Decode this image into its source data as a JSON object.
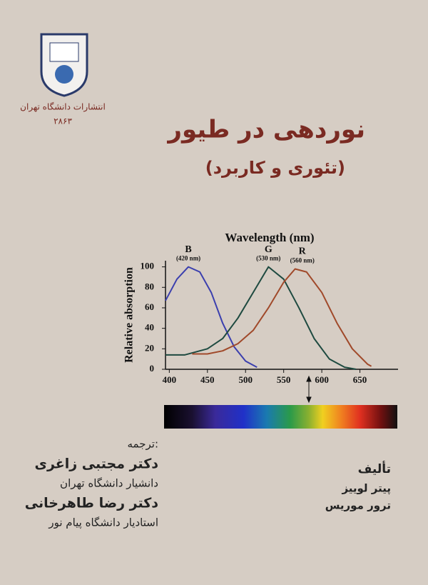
{
  "publisher": {
    "name": "انتشارات دانشگاه تهران",
    "number": "۲۸۶۳"
  },
  "title": "نوردهی در طیور",
  "subtitle": "(تئوری و کاربرد)",
  "chart_data": {
    "type": "line",
    "title": "Wavelength (nm)",
    "ylabel": "Relative absorption",
    "xlim": [
      395,
      700
    ],
    "ylim": [
      0,
      106
    ],
    "xticks": [
      400,
      450,
      500,
      550,
      600,
      650
    ],
    "yticks": [
      0,
      20,
      40,
      60,
      80,
      100
    ],
    "series": [
      {
        "name": "B",
        "peak_label": "(420 nm)",
        "color": "#3b3fae",
        "x": [
          395,
          410,
          425,
          440,
          455,
          470,
          485,
          500,
          515
        ],
        "values": [
          67,
          88,
          100,
          95,
          75,
          45,
          22,
          8,
          2
        ]
      },
      {
        "name": "G",
        "peak_label": "(530 nm)",
        "color": "#1e4a40",
        "x": [
          395,
          420,
          450,
          470,
          490,
          510,
          530,
          550,
          570,
          590,
          610,
          630,
          645
        ],
        "values": [
          14,
          14,
          20,
          30,
          50,
          75,
          100,
          88,
          60,
          30,
          10,
          2,
          0
        ]
      },
      {
        "name": "R",
        "peak_label": "(560 nm)",
        "color": "#a0492a",
        "x": [
          430,
          450,
          470,
          490,
          510,
          530,
          550,
          565,
          580,
          600,
          620,
          640,
          660,
          665
        ],
        "values": [
          15,
          15,
          18,
          25,
          38,
          60,
          85,
          98,
          95,
          75,
          45,
          20,
          5,
          3
        ]
      }
    ]
  },
  "translators": {
    "heading": "ترجمه:",
    "people": [
      {
        "name": "دکتر مجتبی زاغری",
        "role": "دانشیار دانشگاه تهران"
      },
      {
        "name": "دکتر رضا طاهرخانی",
        "role": "استادیار دانشگاه پیام نور"
      }
    ]
  },
  "authors": {
    "heading": "تألیف",
    "names": [
      "پیتر لوییز",
      "ترور موریس"
    ]
  }
}
